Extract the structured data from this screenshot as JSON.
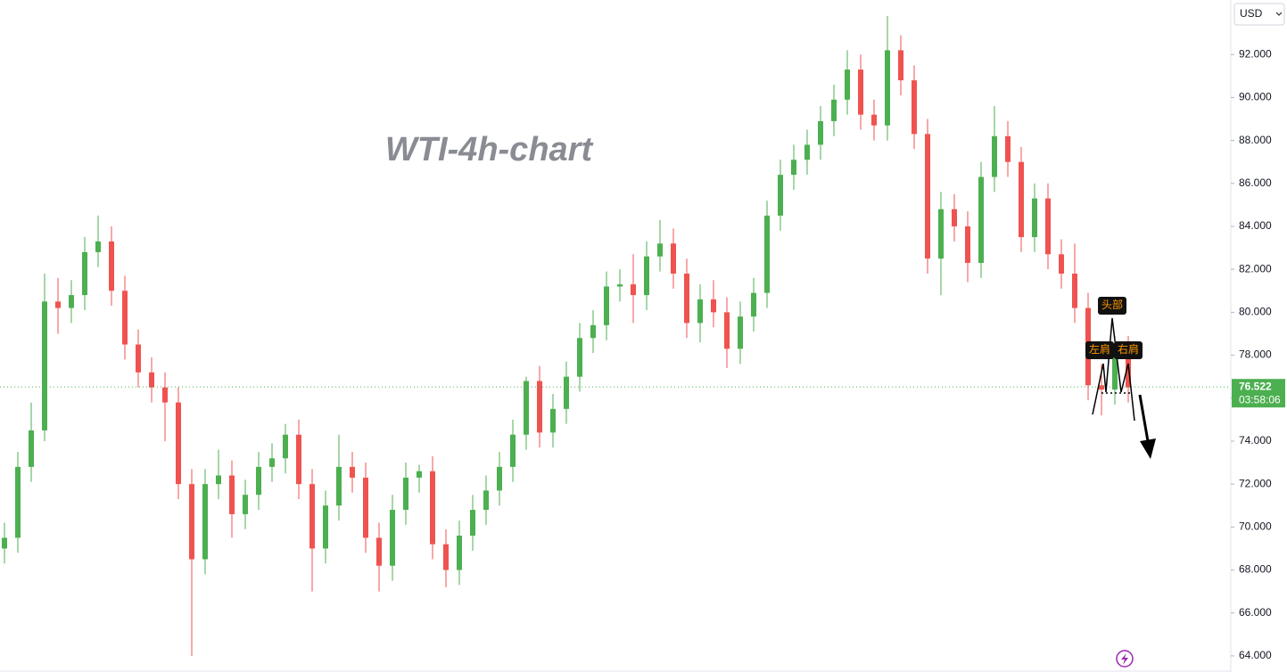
{
  "chart_data": {
    "type": "candlestick",
    "title": "WTI-4h-chart",
    "currency": "USD",
    "up_color": "#4caf50",
    "down_color": "#ef5350",
    "open": [
      69.0,
      69.5,
      72.8,
      74.5,
      80.5,
      80.2,
      80.8,
      82.8,
      83.3,
      81.0,
      78.5,
      77.2,
      76.5,
      75.8,
      72.0,
      68.5,
      72.0,
      72.4,
      70.6,
      71.5,
      72.8,
      73.2,
      74.3,
      72.0,
      69.0,
      71.0,
      72.8,
      72.3,
      69.5,
      68.2,
      70.8,
      72.3,
      72.6,
      69.2,
      68.0,
      69.6,
      70.8,
      71.7,
      72.8,
      74.3,
      76.8,
      74.4,
      75.5,
      77.0,
      78.8,
      79.4,
      81.2,
      81.3,
      80.8,
      82.6,
      83.2,
      81.8,
      79.5,
      80.6,
      80.0,
      78.3,
      79.8,
      80.9,
      84.5,
      86.4,
      87.1,
      87.8,
      88.9,
      89.9,
      91.3,
      89.2,
      88.7,
      92.2,
      90.8,
      88.3,
      82.5,
      84.8,
      84.0,
      82.3,
      86.3,
      88.2,
      87.0,
      83.5,
      85.3,
      82.7,
      81.8,
      80.2,
      76.6,
      76.4,
      78.2
    ],
    "high": [
      70.2,
      73.5,
      75.8,
      81.8,
      81.6,
      81.5,
      83.5,
      84.5,
      84.0,
      81.7,
      79.2,
      77.9,
      77.2,
      76.5,
      72.7,
      72.7,
      73.6,
      73.1,
      72.2,
      73.5,
      73.9,
      74.8,
      75.0,
      72.7,
      71.7,
      74.3,
      73.5,
      73.0,
      70.2,
      71.5,
      73.0,
      72.9,
      73.3,
      69.9,
      70.3,
      71.5,
      72.4,
      73.5,
      75.0,
      77.0,
      77.5,
      76.2,
      77.7,
      79.5,
      80.1,
      81.9,
      82.0,
      82.7,
      83.3,
      84.3,
      83.9,
      82.5,
      81.3,
      81.5,
      80.7,
      80.5,
      81.6,
      85.2,
      87.1,
      87.8,
      88.5,
      89.6,
      90.6,
      92.2,
      92.0,
      89.9,
      93.8,
      92.9,
      91.5,
      89.0,
      85.6,
      85.5,
      84.7,
      87.0,
      89.6,
      88.9,
      87.7,
      86.0,
      86.0,
      83.4,
      83.2,
      80.9,
      77.6,
      78.9,
      78.9
    ],
    "low": [
      68.3,
      68.8,
      72.1,
      74.0,
      79.0,
      79.5,
      80.1,
      82.1,
      80.3,
      77.8,
      76.5,
      75.8,
      74.0,
      71.3,
      64.0,
      67.8,
      71.3,
      69.5,
      69.9,
      70.8,
      72.1,
      72.5,
      71.3,
      67.0,
      68.3,
      70.3,
      71.6,
      68.8,
      67.0,
      67.5,
      70.1,
      71.6,
      68.5,
      67.2,
      67.3,
      68.9,
      70.1,
      71.0,
      72.1,
      73.6,
      73.7,
      73.7,
      74.8,
      76.3,
      78.1,
      78.7,
      80.5,
      79.5,
      80.1,
      81.9,
      81.1,
      78.8,
      78.6,
      79.3,
      77.4,
      77.6,
      79.1,
      80.2,
      83.8,
      85.7,
      86.4,
      87.1,
      88.2,
      89.2,
      88.5,
      88.0,
      88.0,
      90.1,
      87.6,
      81.8,
      80.8,
      83.3,
      81.4,
      81.6,
      85.6,
      86.3,
      82.8,
      82.8,
      82.0,
      81.1,
      79.5,
      75.9,
      75.2,
      75.7,
      75.8
    ],
    "close": [
      69.5,
      72.8,
      74.5,
      80.5,
      80.2,
      80.8,
      82.8,
      83.3,
      81.0,
      78.5,
      77.2,
      76.5,
      75.8,
      72.0,
      68.5,
      72.0,
      72.4,
      70.6,
      71.5,
      72.8,
      73.2,
      74.3,
      72.0,
      69.0,
      71.0,
      72.8,
      72.3,
      69.5,
      68.2,
      70.8,
      72.3,
      72.6,
      69.2,
      68.0,
      69.6,
      70.8,
      71.7,
      72.8,
      74.3,
      76.8,
      74.4,
      75.5,
      77.0,
      78.8,
      79.4,
      81.2,
      81.3,
      80.8,
      82.6,
      83.2,
      81.8,
      79.5,
      80.6,
      80.0,
      78.3,
      79.8,
      80.9,
      84.5,
      86.4,
      87.1,
      87.8,
      88.9,
      89.9,
      91.3,
      89.2,
      88.7,
      92.2,
      90.8,
      88.3,
      82.5,
      84.8,
      84.0,
      82.3,
      86.3,
      88.2,
      87.0,
      83.5,
      85.3,
      82.7,
      81.8,
      80.2,
      76.6,
      76.4,
      78.2,
      76.5
    ],
    "ylim": [
      63.25,
      94.54
    ],
    "yticks": [
      {
        "value": 64,
        "label": "64.000"
      },
      {
        "value": 66,
        "label": "66.000"
      },
      {
        "value": 68,
        "label": "68.000"
      },
      {
        "value": 70,
        "label": "70.000"
      },
      {
        "value": 72,
        "label": "72.000"
      },
      {
        "value": 74,
        "label": "74.000"
      },
      {
        "value": 76,
        "label": "76.000"
      },
      {
        "value": 78,
        "label": "78.000"
      },
      {
        "value": 80,
        "label": "80.000"
      },
      {
        "value": 82,
        "label": "82.000"
      },
      {
        "value": 84,
        "label": "84.000"
      },
      {
        "value": 86,
        "label": "86.000"
      },
      {
        "value": 88,
        "label": "88.000"
      },
      {
        "value": 90,
        "label": "90.000"
      },
      {
        "value": 92,
        "label": "92.000"
      }
    ],
    "last_price": 76.522,
    "countdown": "03:58:06",
    "annotations": {
      "head": "头部",
      "left_shoulder": "左肩",
      "right_shoulder": "右肩"
    }
  }
}
